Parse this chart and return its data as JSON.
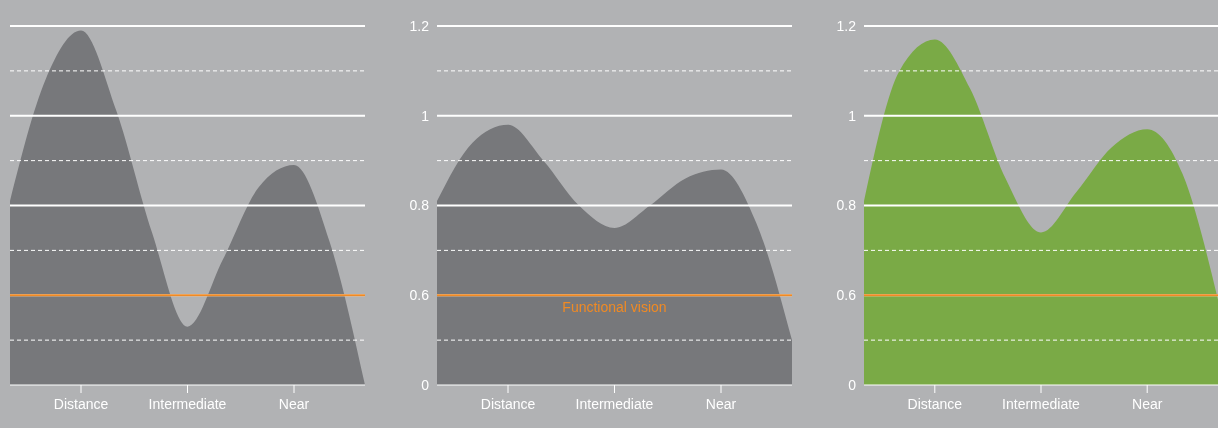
{
  "chart_data": [
    {
      "type": "area",
      "categories": [
        null,
        null,
        "Distance",
        null,
        null,
        "Intermediate",
        null,
        null,
        "Near",
        null,
        null
      ],
      "series": [
        {
          "color": "#77787b",
          "values": [
            0.81,
            1.08,
            1.19,
            1.01,
            0.74,
            0.53,
            0.68,
            0.84,
            0.89,
            0.72,
            0.4
          ]
        }
      ],
      "ylim": [
        0.4,
        1.2
      ],
      "yticks": [
        {
          "value": 0.5,
          "label": null
        },
        0.6,
        {
          "value": 0.7,
          "label": null
        },
        0.8,
        {
          "value": 0.9,
          "label": null
        },
        1.0,
        {
          "value": 1.1,
          "label": null
        },
        1.2
      ],
      "grid": "y",
      "tick_labels": "x",
      "ref_lines": [
        {
          "axis": "y",
          "value": 0.6,
          "label": null,
          "color": "#f08a24"
        }
      ]
    },
    {
      "type": "area",
      "categories": [
        null,
        null,
        "Distance",
        null,
        null,
        "Intermediate",
        null,
        null,
        "Near",
        null,
        null
      ],
      "series": [
        {
          "color": "#77787b",
          "values": [
            0.81,
            0.94,
            0.98,
            0.9,
            0.8,
            0.75,
            0.8,
            0.86,
            0.88,
            0.76,
            0.5
          ]
        }
      ],
      "ylim": [
        0.4,
        1.2
      ],
      "yticks": [
        {
          "value": 0.4,
          "label": "0"
        },
        {
          "value": 0.5,
          "label": null
        },
        0.6,
        {
          "value": 0.7,
          "label": null
        },
        0.8,
        {
          "value": 0.9,
          "label": null
        },
        1.0,
        {
          "value": 1.1,
          "label": null
        },
        1.2
      ],
      "grid": "y",
      "ref_lines": [
        {
          "axis": "y",
          "value": 0.6,
          "label": "Functional vision",
          "color": "#f08a24"
        }
      ]
    },
    {
      "type": "area",
      "categories": [
        null,
        null,
        "Distance",
        null,
        null,
        "Intermediate",
        null,
        null,
        "Near",
        null,
        null
      ],
      "series": [
        {
          "color": "#7aaa46",
          "values": [
            0.81,
            1.1,
            1.17,
            1.06,
            0.86,
            0.74,
            0.83,
            0.93,
            0.97,
            0.87,
            0.59
          ]
        }
      ],
      "ylim": [
        0.4,
        1.2
      ],
      "yticks": [
        {
          "value": 0.4,
          "label": "0"
        },
        {
          "value": 0.5,
          "label": null
        },
        0.6,
        {
          "value": 0.7,
          "label": null
        },
        0.8,
        {
          "value": 0.9,
          "label": null
        },
        1.0,
        {
          "value": 1.1,
          "label": null
        },
        1.2
      ],
      "grid": "y",
      "ref_lines": [
        {
          "axis": "y",
          "value": 0.6,
          "label": null,
          "color": "#f08a24"
        }
      ]
    }
  ]
}
